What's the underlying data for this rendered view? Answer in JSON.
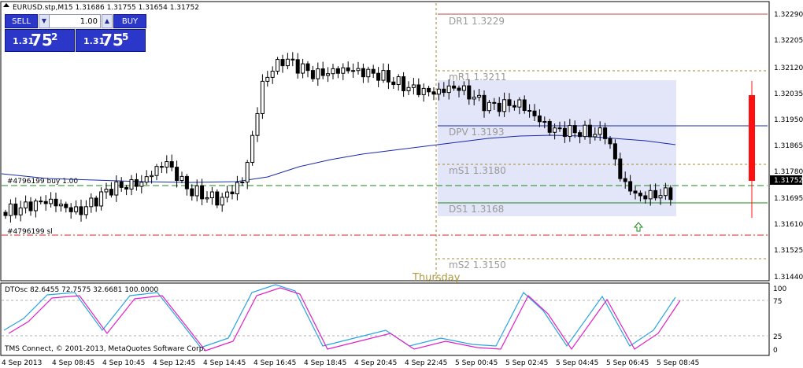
{
  "header": {
    "symbol_line": "EURUSD.stp,M15  1.31686 1.31755 1.31654 1.31752"
  },
  "one_click": {
    "sell_label": "SELL",
    "buy_label": "BUY",
    "lot": "1.00",
    "sell_price_small": "1.31",
    "sell_price_big": "75",
    "sell_price_sup": "2",
    "buy_price_small": "1.31",
    "buy_price_big": "75",
    "buy_price_sup": "5"
  },
  "colors": {
    "bull": "#ffffff",
    "bear": "#000000",
    "ma": "#1a2aa8",
    "pivot_zone": "#e3e5f8",
    "red": "#ff1010"
  },
  "price_axis": {
    "ticks": [
      "1.32290",
      "1.32205",
      "1.32120",
      "1.32035",
      "1.31950",
      "1.31865",
      "1.31780",
      "1.31695",
      "1.31610",
      "1.31525",
      "1.31440"
    ],
    "current_price": "1.31752"
  },
  "pivots": [
    {
      "label": "DR1  1.3229"
    },
    {
      "label": "mR1  1.3211"
    },
    {
      "label": "DPV  1.3193"
    },
    {
      "label": "mS1  1.3180"
    },
    {
      "label": "DS1  1.3168"
    },
    {
      "label": "mS2  1.3150"
    }
  ],
  "orders": {
    "buy_label": "#4796199 buy 1.00",
    "sl_label": "#4796199 sl"
  },
  "day_separator_label": "Thursday",
  "oscillator": {
    "header": "DTOsc 82.6455 72.7575 32.6681 100.0000",
    "levels": [
      "100",
      "75",
      "25",
      "0"
    ]
  },
  "copyright": "TMS Connect, © 2001-2013, MetaQuotes Software Corp.",
  "time_axis": [
    "4 Sep 2013",
    "4 Sep 08:45",
    "4 Sep 10:45",
    "4 Sep 12:45",
    "4 Sep 14:45",
    "4 Sep 16:45",
    "4 Sep 18:45",
    "4 Sep 20:45",
    "4 Sep 22:45",
    "5 Sep 00:45",
    "5 Sep 02:45",
    "5 Sep 04:45",
    "5 Sep 06:45",
    "5 Sep 08:45"
  ]
}
